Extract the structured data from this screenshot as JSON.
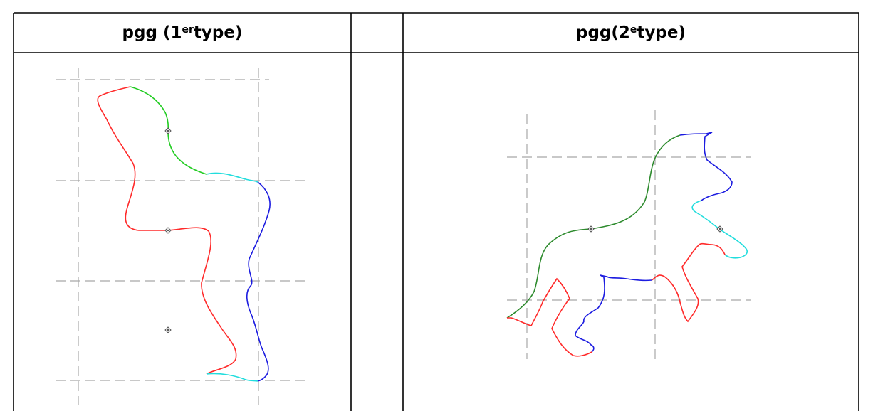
{
  "table": {
    "col1": {
      "base": "pgg (1",
      "sup": "er",
      "rest": "type)"
    },
    "col2": {
      "base": "pgg(2",
      "sup": "e",
      "rest": "type)"
    }
  },
  "colors": {
    "red": "#ff2a2a",
    "green": "#22cc22",
    "dark_green": "#2e8b2e",
    "blue": "#1c1ce0",
    "cyan": "#22dddd",
    "guide": "#a8a8a8",
    "marker": "#555555"
  }
}
